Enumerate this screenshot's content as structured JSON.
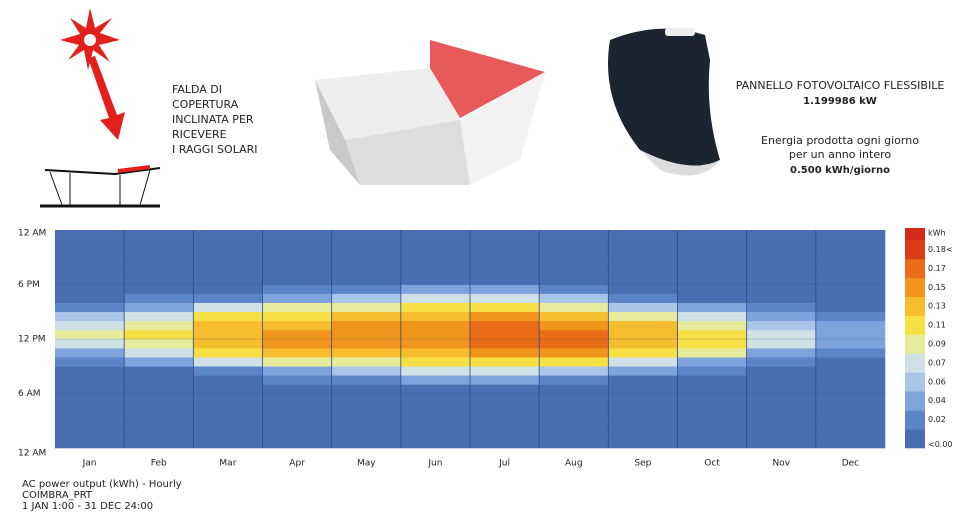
{
  "header": {
    "left_text": [
      "FALDA DI",
      "COPERTURA",
      "INCLINATA PER",
      "RICEVERE",
      "I RAGGI SOLARI"
    ],
    "panel_title": "PANNELLO FOTOVOLTAICO FLESSIBILE",
    "panel_power": "1.199986 kW",
    "energy_lines": [
      "Energia prodotta ogni giorno",
      "per un anno intero"
    ],
    "energy_value": "0.500 kWh/giorno"
  },
  "chart_data": {
    "type": "heatmap",
    "categories": [
      "Jan",
      "Feb",
      "Mar",
      "Apr",
      "May",
      "Jun",
      "Jul",
      "Aug",
      "Sep",
      "Oct",
      "Nov",
      "Dec"
    ],
    "values": [
      [
        0,
        0,
        0,
        0,
        0,
        0,
        0,
        0,
        0,
        0.02,
        0.05,
        0.08,
        0.09,
        0.08,
        0.06,
        0.03,
        0.01,
        0,
        0,
        0,
        0,
        0,
        0,
        0
      ],
      [
        0,
        0,
        0,
        0,
        0,
        0,
        0,
        0,
        0.01,
        0.04,
        0.07,
        0.1,
        0.11,
        0.1,
        0.08,
        0.05,
        0.02,
        0,
        0,
        0,
        0,
        0,
        0,
        0
      ],
      [
        0,
        0,
        0,
        0,
        0,
        0,
        0,
        0.01,
        0.03,
        0.07,
        0.11,
        0.13,
        0.14,
        0.13,
        0.11,
        0.07,
        0.03,
        0.01,
        0,
        0,
        0,
        0,
        0,
        0
      ],
      [
        0,
        0,
        0,
        0,
        0,
        0,
        0,
        0.02,
        0.05,
        0.09,
        0.13,
        0.15,
        0.15,
        0.14,
        0.12,
        0.09,
        0.05,
        0.02,
        0,
        0,
        0,
        0,
        0,
        0
      ],
      [
        0,
        0,
        0,
        0,
        0,
        0,
        0.01,
        0.03,
        0.06,
        0.1,
        0.13,
        0.15,
        0.15,
        0.15,
        0.13,
        0.1,
        0.06,
        0.03,
        0.01,
        0,
        0,
        0,
        0,
        0
      ],
      [
        0,
        0,
        0,
        0,
        0,
        0,
        0.01,
        0.04,
        0.07,
        0.11,
        0.14,
        0.16,
        0.16,
        0.16,
        0.14,
        0.11,
        0.07,
        0.04,
        0.01,
        0,
        0,
        0,
        0,
        0
      ],
      [
        0,
        0,
        0,
        0,
        0,
        0,
        0.01,
        0.04,
        0.07,
        0.11,
        0.15,
        0.17,
        0.17,
        0.17,
        0.15,
        0.11,
        0.07,
        0.04,
        0.01,
        0,
        0,
        0,
        0,
        0
      ],
      [
        0,
        0,
        0,
        0,
        0,
        0,
        0,
        0.03,
        0.06,
        0.11,
        0.15,
        0.17,
        0.17,
        0.16,
        0.14,
        0.1,
        0.06,
        0.03,
        0.01,
        0,
        0,
        0,
        0,
        0
      ],
      [
        0,
        0,
        0,
        0,
        0,
        0,
        0,
        0.01,
        0.04,
        0.08,
        0.12,
        0.14,
        0.14,
        0.13,
        0.1,
        0.06,
        0.03,
        0.01,
        0,
        0,
        0,
        0,
        0,
        0
      ],
      [
        0,
        0,
        0,
        0,
        0,
        0,
        0,
        0,
        0.02,
        0.05,
        0.09,
        0.11,
        0.11,
        0.1,
        0.07,
        0.04,
        0.01,
        0,
        0,
        0,
        0,
        0,
        0,
        0
      ],
      [
        0,
        0,
        0,
        0,
        0,
        0,
        0,
        0,
        0,
        0.02,
        0.05,
        0.07,
        0.07,
        0.06,
        0.04,
        0.02,
        0,
        0,
        0,
        0,
        0,
        0,
        0,
        0
      ],
      [
        0,
        0,
        0,
        0,
        0,
        0,
        0,
        0,
        0,
        0.01,
        0.03,
        0.05,
        0.05,
        0.04,
        0.03,
        0.01,
        0,
        0,
        0,
        0,
        0,
        0,
        0,
        0
      ]
    ],
    "ylim": [
      0,
      24
    ],
    "yticks": [
      {
        "value": 24,
        "label": "12 AM"
      },
      {
        "value": 18,
        "label": "6 PM"
      },
      {
        "value": 12,
        "label": "12 PM"
      },
      {
        "value": 6,
        "label": "6 AM"
      },
      {
        "value": 0,
        "label": "12 AM"
      }
    ],
    "legend_title": "kWh",
    "color_stops": [
      {
        "value": 0,
        "label": "<0.00",
        "color": "#4a6db3"
      },
      {
        "value": 0.02,
        "label": "0.02",
        "color": "#5b84c9"
      },
      {
        "value": 0.04,
        "label": "0.04",
        "color": "#7fa3dc"
      },
      {
        "value": 0.06,
        "label": "0.06",
        "color": "#a9c5e8"
      },
      {
        "value": 0.07,
        "label": "0.07",
        "color": "#cfe0e6"
      },
      {
        "value": 0.09,
        "label": "0.09",
        "color": "#e7ec9c"
      },
      {
        "value": 0.11,
        "label": "0.11",
        "color": "#f6e045"
      },
      {
        "value": 0.13,
        "label": "0.13",
        "color": "#f6bd2e"
      },
      {
        "value": 0.15,
        "label": "0.15",
        "color": "#f2951d"
      },
      {
        "value": 0.17,
        "label": "0.17",
        "color": "#ea6c17"
      },
      {
        "value": 0.18,
        "label": "0.18<",
        "color": "#dc3a18"
      }
    ],
    "caption": [
      "AC power output (kWh) - Hourly",
      "COIMBRA_PRT",
      "1 JAN 1:00 - 31 DEC 24:00"
    ]
  }
}
